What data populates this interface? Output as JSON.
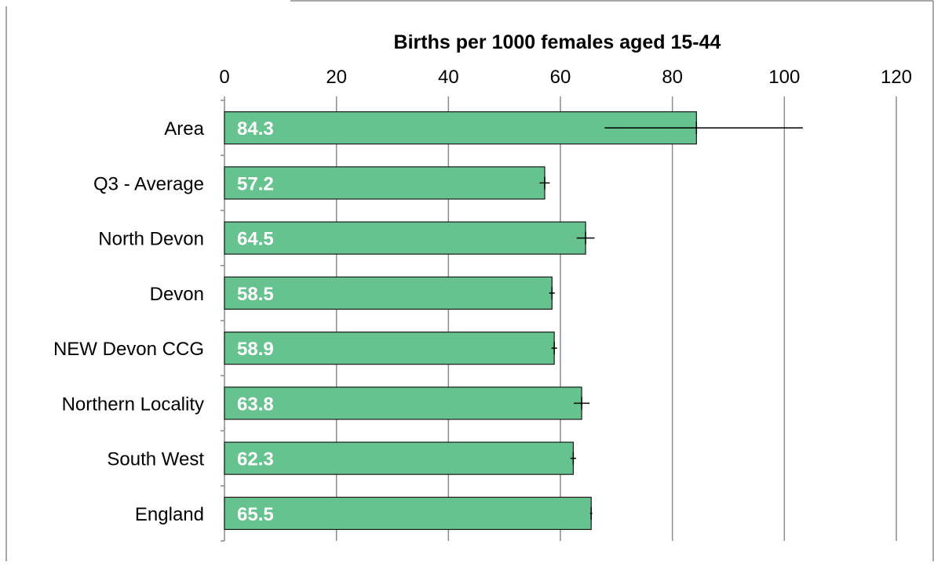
{
  "chart_data": {
    "type": "bar",
    "orientation": "horizontal",
    "title": "Births per 1000 females aged 15-44",
    "xlabel": "",
    "ylabel": "",
    "xlim": [
      0,
      120
    ],
    "x_ticks": [
      0,
      20,
      40,
      60,
      80,
      100,
      120
    ],
    "grid": "vertical",
    "categories": [
      "Area",
      "Q3 - Average",
      "North Devon",
      "Devon",
      "NEW Devon CCG",
      "Northern Locality",
      "South West",
      "England"
    ],
    "values": [
      84.3,
      57.2,
      64.5,
      58.5,
      58.9,
      63.8,
      62.3,
      65.5
    ],
    "data_labels": [
      "84.3",
      "57.2",
      "64.5",
      "58.5",
      "58.9",
      "63.8",
      "62.3",
      "65.5"
    ],
    "error_low": [
      67.9,
      56.3,
      62.9,
      58.0,
      58.4,
      62.4,
      61.8,
      65.3
    ],
    "error_high": [
      103.3,
      58.1,
      66.1,
      59.0,
      59.4,
      65.2,
      62.8,
      65.7
    ],
    "colors": {
      "bar_fill": "#66c28e",
      "bar_stroke": "#1a1a1a",
      "data_label": "#ffffff",
      "grid": "#8c8c8c",
      "text": "#000000"
    }
  }
}
